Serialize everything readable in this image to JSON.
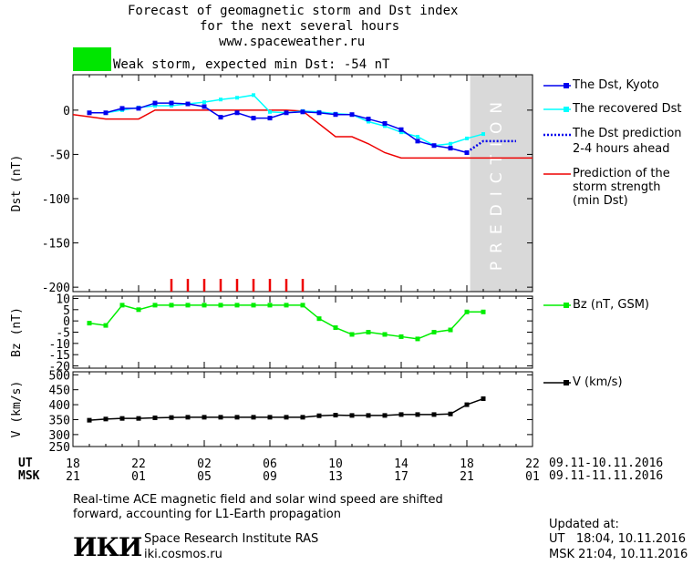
{
  "header": {
    "title_line1": "Forecast of geomagnetic storm and Dst index",
    "title_line2": "for the next several hours",
    "title_line3": "www.spaceweather.ru",
    "storm_label": "Weak storm, expected min Dst: -54 nT",
    "storm_color": "#00e600"
  },
  "colors": {
    "dst_kyoto": "#0000ee",
    "dst_recovered": "#00ffff",
    "prediction_min": "#ee0000",
    "bz": "#00ee00",
    "v": "#000000",
    "prediction_band": "#d9d9d9"
  },
  "prediction_band_label": "PREDICTION",
  "legend": {
    "dst_kyoto": "The Dst, Kyoto",
    "dst_recovered": "The recovered Dst",
    "dst_prediction_1": "The Dst prediction",
    "dst_prediction_2": "2-4 hours ahead",
    "min_dst_1": "Prediction of the",
    "min_dst_2": "storm strength",
    "min_dst_3": "(min Dst)",
    "bz": "Bz (nT, GSM)",
    "v": "V (km/s)"
  },
  "time_axis": {
    "ut_label": "UT",
    "msk_label": "MSK",
    "ut_ticks": [
      "18",
      "22",
      "02",
      "06",
      "10",
      "14",
      "18",
      "22"
    ],
    "msk_ticks": [
      "21",
      "01",
      "05",
      "09",
      "13",
      "17",
      "21",
      "01"
    ],
    "ut_dates": "09.11-10.11.2016",
    "msk_dates": "09.11-11.11.2016"
  },
  "footer": {
    "note_line1": "Real-time ACE magnetic field and solar wind speed are shifted",
    "note_line2": "forward, accounting for L1-Earth propagation",
    "logo": "ИКИ",
    "institute": "Space Research Institute RAS",
    "site": "iki.cosmos.ru",
    "updated_label": "Updated at:",
    "updated_ut": "UT   18:04, 10.11.2016",
    "updated_msk": "MSK 21:04, 10.11.2016"
  },
  "chart_data": [
    {
      "type": "line",
      "ylabel": "Dst (nT)",
      "xlim": [
        18,
        46
      ],
      "ylim": [
        -205,
        40
      ],
      "yticks": [
        0,
        -50,
        -100,
        -150,
        -200
      ],
      "prediction_start": 42.2,
      "series": [
        {
          "name": "The Dst, Kyoto",
          "x": [
            19,
            20,
            21,
            22,
            23,
            24,
            25,
            26,
            27,
            28,
            29,
            30,
            31,
            32,
            33,
            34,
            35,
            36,
            37,
            38,
            39,
            40,
            41,
            42
          ],
          "y": [
            -3,
            -3,
            2,
            2,
            8,
            8,
            7,
            4,
            -8,
            -3,
            -9,
            -9,
            -3,
            -2,
            -3,
            -5,
            -5,
            -10,
            -15,
            -22,
            -35,
            -40,
            -43,
            -48
          ]
        },
        {
          "name": "The recovered Dst",
          "x": [
            19,
            20,
            21,
            22,
            23,
            24,
            25,
            26,
            27,
            28,
            29,
            30,
            31,
            32,
            33,
            34,
            35,
            36,
            37,
            38,
            39,
            40,
            41,
            42,
            43
          ],
          "y": [
            -3,
            -3,
            0,
            3,
            5,
            5,
            7,
            9,
            12,
            14,
            17,
            -2,
            -3,
            -1,
            -2,
            -4,
            -5,
            -13,
            -18,
            -25,
            -30,
            -40,
            -38,
            -32,
            -27
          ]
        },
        {
          "name": "The Dst prediction 2-4 hours ahead",
          "x": [
            42.2,
            43,
            45
          ],
          "y": [
            -45,
            -35,
            -35
          ]
        },
        {
          "name": "Prediction of the storm strength (min Dst)",
          "x": [
            18,
            20,
            22,
            23,
            24,
            26,
            28,
            30,
            31,
            32,
            34,
            35,
            36,
            37,
            38,
            39,
            40,
            42,
            46
          ],
          "y": [
            -5,
            -10,
            -10,
            0,
            0,
            0,
            0,
            0,
            0,
            -1,
            -30,
            -30,
            -38,
            -48,
            -54,
            -54,
            -54,
            -54,
            -54
          ]
        }
      ],
      "markers_x": [
        24,
        25,
        26,
        27,
        28,
        29,
        30,
        31,
        32
      ]
    },
    {
      "type": "line",
      "ylabel": "Bz (nT)",
      "ylim": [
        -21,
        11
      ],
      "yticks": [
        10,
        5,
        0,
        -5,
        -10,
        -15,
        -20
      ],
      "series": [
        {
          "name": "Bz (nT, GSM)",
          "x": [
            19,
            20,
            21,
            22,
            23,
            24,
            25,
            26,
            27,
            28,
            29,
            30,
            31,
            32,
            33,
            34,
            35,
            36,
            37,
            38,
            39,
            40,
            41,
            42,
            43
          ],
          "y": [
            -1,
            -2,
            7,
            5,
            7,
            7,
            7,
            7,
            7,
            7,
            7,
            7,
            7,
            7,
            1,
            -3,
            -6,
            -5,
            -6,
            -7,
            -8,
            -5,
            -4,
            4,
            4
          ]
        }
      ]
    },
    {
      "type": "line",
      "ylabel": "V (km/s)",
      "ylim": [
        260,
        510
      ],
      "yticks": [
        500,
        450,
        400,
        350,
        300,
        250
      ],
      "series": [
        {
          "name": "V (km/s)",
          "x": [
            19,
            20,
            21,
            22,
            23,
            24,
            25,
            26,
            27,
            28,
            29,
            30,
            31,
            32,
            33,
            34,
            35,
            36,
            37,
            38,
            39,
            40,
            41,
            42,
            43
          ],
          "y": [
            348,
            352,
            354,
            354,
            356,
            357,
            358,
            358,
            358,
            358,
            358,
            358,
            358,
            358,
            363,
            365,
            364,
            364,
            364,
            367,
            367,
            367,
            369,
            400,
            420
          ]
        }
      ]
    }
  ]
}
